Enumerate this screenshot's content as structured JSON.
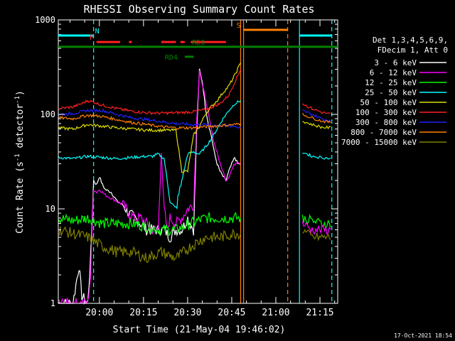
{
  "chart_data": {
    "type": "line",
    "title": "RHESSI Observing Summary Count Rates",
    "xlabel": "Start Time (21-May-04 19:46:02)",
    "ylabel_main": "Count Rate (s",
    "ylabel_sup": "-1",
    "ylabel_mid": " detector",
    "ylabel_sup2": "-1",
    "ylabel_end": ")",
    "yscale": "log",
    "ylim": [
      1,
      1000
    ],
    "xlim_minutes": [
      0,
      95
    ],
    "y_ticks": [
      {
        "value": 1,
        "label": "1"
      },
      {
        "value": 10,
        "label": "10"
      },
      {
        "value": 100,
        "label": "100"
      },
      {
        "value": 1000,
        "label": "1000"
      }
    ],
    "x_ticks": [
      {
        "minute": 13.97,
        "label": "20:00"
      },
      {
        "minute": 28.97,
        "label": "20:15"
      },
      {
        "minute": 43.97,
        "label": "20:30"
      },
      {
        "minute": 58.97,
        "label": "20:45"
      },
      {
        "minute": 73.97,
        "label": "21:00"
      },
      {
        "minute": 88.97,
        "label": "21:15"
      }
    ],
    "legend_header": [
      "Det 1,3,4,5,6,9,",
      "FDecim 1, Att 0"
    ],
    "series": [
      {
        "name": "3 - 6 keV",
        "color": "#ffffff",
        "x": [
          0,
          5,
          7,
          8,
          10,
          11,
          12,
          13,
          14,
          15,
          16,
          18,
          20,
          22,
          24,
          26,
          28,
          30,
          32,
          34,
          36,
          38,
          40,
          42,
          44,
          46,
          47,
          48,
          49,
          50,
          51,
          52,
          53,
          54,
          55,
          56,
          57,
          58,
          59,
          60,
          61,
          62
        ],
        "y": [
          1,
          1,
          2.5,
          1.2,
          1,
          3,
          20,
          18,
          22,
          18,
          16,
          15,
          12,
          11,
          9,
          8,
          7,
          6,
          6,
          6,
          6,
          5,
          6,
          6,
          8,
          6,
          60,
          300,
          220,
          120,
          80,
          60,
          40,
          30,
          25,
          22,
          20,
          25,
          30,
          35,
          30,
          30
        ]
      },
      {
        "name": "6 - 12 keV",
        "color": "#ff00ff",
        "x": [
          0,
          10,
          11,
          12,
          13,
          14,
          15,
          16,
          18,
          20,
          22,
          24,
          26,
          28,
          30,
          32,
          34,
          35,
          36,
          37,
          38,
          40,
          42,
          44,
          46,
          47,
          48,
          49,
          50,
          51,
          52,
          53,
          54,
          55,
          56,
          57,
          58,
          59,
          60,
          61,
          62
        ],
        "y": [
          1,
          1,
          2,
          16,
          15,
          16,
          15,
          14,
          13,
          12,
          11,
          9,
          8,
          8,
          7,
          6,
          6,
          40,
          10,
          6,
          8,
          7,
          8,
          10,
          11,
          80,
          300,
          200,
          150,
          100,
          70,
          50,
          40,
          30,
          25,
          20,
          22,
          26,
          30,
          32,
          30
        ]
      },
      {
        "name": "12 - 25 keV",
        "color": "#00ff00",
        "x": [
          0,
          5,
          10,
          15,
          20,
          25,
          30,
          35,
          40,
          45,
          50,
          55,
          60,
          62
        ],
        "y": [
          8,
          7.5,
          8,
          7,
          7,
          7,
          6.5,
          6,
          6,
          7,
          8,
          8,
          8,
          8
        ]
      },
      {
        "name": "25 - 50 keV",
        "color": "#00ffff",
        "x": [
          0,
          5,
          10,
          15,
          20,
          25,
          30,
          32,
          34,
          36,
          38,
          40,
          42,
          44,
          46,
          48,
          50,
          52,
          54,
          56,
          58,
          60,
          62
        ],
        "y": [
          35,
          34,
          36,
          35,
          34,
          35,
          36,
          36,
          38,
          34,
          12,
          10,
          20,
          38,
          40,
          38,
          45,
          55,
          70,
          90,
          110,
          130,
          140
        ]
      },
      {
        "name": "50 - 100 keV",
        "color": "#dddd00",
        "x": [
          0,
          5,
          10,
          15,
          20,
          25,
          30,
          35,
          40,
          42,
          44,
          46,
          48,
          50,
          52,
          54,
          56,
          58,
          60,
          62
        ],
        "y": [
          72,
          70,
          78,
          75,
          72,
          70,
          68,
          68,
          68,
          25,
          25,
          60,
          75,
          100,
          120,
          140,
          170,
          200,
          260,
          350
        ]
      },
      {
        "name": "100 - 300 keV",
        "color": "#ff2020",
        "x": [
          0,
          5,
          8,
          10,
          12,
          15,
          20,
          25,
          30,
          35,
          40,
          45,
          50,
          55,
          58,
          60,
          62
        ],
        "y": [
          115,
          120,
          130,
          140,
          135,
          125,
          115,
          108,
          104,
          103,
          104,
          106,
          112,
          130,
          160,
          220,
          300
        ]
      },
      {
        "name": "300 - 800 keV",
        "color": "#2020ff",
        "x": [
          0,
          5,
          10,
          15,
          20,
          25,
          30,
          35,
          40,
          45,
          50,
          55,
          60,
          62
        ],
        "y": [
          100,
          102,
          110,
          110,
          100,
          92,
          88,
          84,
          80,
          78,
          78,
          76,
          75,
          72
        ]
      },
      {
        "name": "800 - 7000 keV",
        "color": "#ff8000",
        "x": [
          0,
          5,
          10,
          15,
          20,
          25,
          30,
          35,
          40,
          45,
          50,
          55,
          60,
          62
        ],
        "y": [
          92,
          90,
          98,
          95,
          88,
          82,
          78,
          74,
          72,
          72,
          74,
          76,
          78,
          80
        ]
      },
      {
        "name": "7000 - 15000 keV",
        "color": "#808000",
        "x": [
          0,
          5,
          10,
          15,
          20,
          25,
          30,
          35,
          40,
          45,
          50,
          55,
          60,
          62
        ],
        "y": [
          6,
          5.5,
          5,
          4,
          3.5,
          3.5,
          3,
          3.5,
          3,
          4,
          5,
          5,
          5.5,
          5.5
        ]
      }
    ],
    "post_gap": {
      "x_start": 83,
      "x_end": 93,
      "values": [
        {
          "series": "100 - 300 keV",
          "y": [
            130,
            115,
            105,
            100
          ]
        },
        {
          "series": "300 - 800 keV",
          "y": [
            110,
            100,
            90,
            85
          ]
        },
        {
          "series": "800 - 7000 keV",
          "y": [
            100,
            92,
            85,
            82
          ]
        },
        {
          "series": "50 - 100 keV",
          "y": [
            85,
            78,
            73,
            72
          ]
        },
        {
          "series": "25 - 50 keV",
          "y": [
            40,
            36,
            35,
            34
          ]
        },
        {
          "series": "12 - 25 keV",
          "y": [
            8,
            7.5,
            7,
            7
          ]
        },
        {
          "series": "6 - 12 keV",
          "y": [
            7,
            6,
            6,
            6
          ]
        },
        {
          "series": "7000 - 15000 keV",
          "y": [
            6,
            5,
            5,
            5
          ]
        }
      ]
    },
    "flags": [
      {
        "label": "N",
        "color": "#00ffff",
        "y_frac": 0.055,
        "segments": [
          [
            0,
            12
          ],
          [
            82,
            93
          ]
        ]
      },
      {
        "label": "F",
        "color": "#ff2020",
        "y_frac": 0.078,
        "segments": [
          [
            13,
            21
          ],
          [
            24,
            25
          ],
          [
            35,
            40
          ],
          [
            41.5,
            43
          ],
          [
            45,
            57
          ]
        ]
      },
      {
        "label": "S",
        "color": "#ff8000",
        "y_frac": 0.035,
        "segments": [
          [
            63,
            78
          ]
        ]
      },
      {
        "label": "RD0",
        "color": "#008000",
        "y_frac": 0.095,
        "segments": [
          [
            0,
            95
          ]
        ]
      },
      {
        "label": "RD4",
        "color": "#008000",
        "y_frac": 0.13,
        "segments": [
          [
            43,
            46
          ]
        ]
      }
    ],
    "vlines": [
      {
        "minute": 12,
        "color": "#00ffff",
        "dashed": true
      },
      {
        "minute": 62,
        "color": "#ff8000",
        "dashed": false
      },
      {
        "minute": 63,
        "color": "#ff8000",
        "dashed": false
      },
      {
        "minute": 78,
        "color": "#ff8000",
        "dashed": true
      },
      {
        "minute": 82,
        "color": "#00ffff",
        "dashed": false
      },
      {
        "minute": 93,
        "color": "#00ffff",
        "dashed": true
      }
    ],
    "timestamp": "17-Oct-2021 18:54"
  }
}
